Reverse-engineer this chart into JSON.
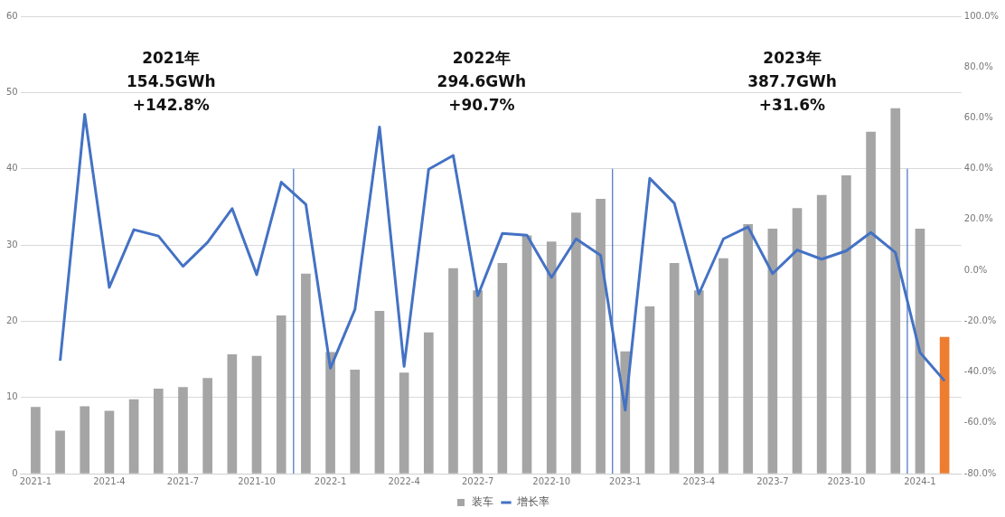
{
  "chart_data": {
    "type": "bar",
    "x": [
      "2021-01",
      "2021-02",
      "2021-03",
      "2021-04",
      "2021-05",
      "2021-06",
      "2021-07",
      "2021-08",
      "2021-09",
      "2021-10",
      "2021-11",
      "2021-12",
      "2022-01",
      "2022-02",
      "2022-03",
      "2022-04",
      "2022-05",
      "2022-06",
      "2022-07",
      "2022-08",
      "2022-09",
      "2022-10",
      "2022-11",
      "2022-12",
      "2023-01",
      "2023-02",
      "2023-03",
      "2023-04",
      "2023-05",
      "2023-06",
      "2023-07",
      "2023-08",
      "2023-09",
      "2023-10",
      "2023-11",
      "2023-12",
      "2024-01",
      "2024-02"
    ],
    "series": [
      {
        "name": "装车",
        "color": "#a5a5a5",
        "colors": [
          "#a5a5a5",
          "#a5a5a5",
          "#a5a5a5",
          "#a5a5a5",
          "#a5a5a5",
          "#a5a5a5",
          "#a5a5a5",
          "#a5a5a5",
          "#a5a5a5",
          "#a5a5a5",
          "#a5a5a5",
          "#a5a5a5",
          "#a5a5a5",
          "#a5a5a5",
          "#a5a5a5",
          "#a5a5a5",
          "#a5a5a5",
          "#a5a5a5",
          "#a5a5a5",
          "#a5a5a5",
          "#a5a5a5",
          "#a5a5a5",
          "#a5a5a5",
          "#a5a5a5",
          "#a5a5a5",
          "#a5a5a5",
          "#a5a5a5",
          "#a5a5a5",
          "#a5a5a5",
          "#a5a5a5",
          "#a5a5a5",
          "#a5a5a5",
          "#a5a5a5",
          "#a5a5a5",
          "#a5a5a5",
          "#a5a5a5",
          "#a5a5a5",
          "#ed7d31"
        ],
        "values": [
          8.7,
          5.6,
          8.8,
          8.2,
          9.7,
          11.1,
          11.3,
          12.5,
          15.6,
          15.4,
          20.7,
          26.2,
          15.9,
          13.6,
          21.3,
          13.2,
          18.5,
          26.9,
          24,
          27.6,
          31.2,
          30.4,
          34.2,
          36,
          16,
          21.9,
          27.6,
          24,
          28.2,
          32.7,
          32.1,
          34.8,
          36.5,
          39.1,
          44.8,
          47.9,
          32.1,
          17.9
        ]
      },
      {
        "type": "line",
        "name": "增长率",
        "color": "#4472c4",
        "axis": "y2",
        "values": [
          null,
          -35.6,
          61.4,
          -6.7,
          16,
          13.5,
          1.6,
          11,
          24.3,
          -1.7,
          34.7,
          26,
          -38.5,
          -15.4,
          56.4,
          -37.8,
          39.8,
          45.2,
          -10,
          14.5,
          13.8,
          -2.8,
          12.4,
          5.9,
          -55,
          36.2,
          26.4,
          -9.3,
          12.4,
          17.1,
          -1.3,
          8,
          4.4,
          7.7,
          14.9,
          7,
          -32.3,
          -43.5
        ]
      }
    ],
    "xlim": [
      "2020-12-13",
      "2024-02-21"
    ],
    "xticks": [
      {
        "value": "2021-01",
        "label": "2021-1"
      },
      {
        "value": "2021-04",
        "label": "2021-4"
      },
      {
        "value": "2021-07",
        "label": "2021-7"
      },
      {
        "value": "2021-10",
        "label": "2021-10"
      },
      {
        "value": "2022-01",
        "label": "2022-1"
      },
      {
        "value": "2022-04",
        "label": "2022-4"
      },
      {
        "value": "2022-07",
        "label": "2022-7"
      },
      {
        "value": "2022-10",
        "label": "2022-10"
      },
      {
        "value": "2023-01",
        "label": "2023-1"
      },
      {
        "value": "2023-04",
        "label": "2023-4"
      },
      {
        "value": "2023-07",
        "label": "2023-7"
      },
      {
        "value": "2023-10",
        "label": "2023-10"
      },
      {
        "value": "2024-01",
        "label": "2024-1"
      }
    ],
    "ylim": [
      0,
      60
    ],
    "yticks": [
      0,
      10,
      20,
      30,
      40,
      50,
      60
    ],
    "y2lim": [
      -80,
      100
    ],
    "y2ticks": [
      {
        "value": -80,
        "label": "-80.0%"
      },
      {
        "value": -60,
        "label": "-60.0%"
      },
      {
        "value": -40,
        "label": "-40.0%"
      },
      {
        "value": -20,
        "label": "-20.0%"
      },
      {
        "value": 0,
        "label": "0.0%"
      },
      {
        "value": 20,
        "label": "20.0%"
      },
      {
        "value": 40,
        "label": "40.0%"
      },
      {
        "value": 60,
        "label": "60.0%"
      },
      {
        "value": 80,
        "label": "80.0%"
      },
      {
        "value": 100,
        "label": "100.0%"
      }
    ],
    "ref_lines": [
      {
        "axis": "x",
        "value": "2021-11-16",
        "color": "#4472c4"
      },
      {
        "axis": "x",
        "value": "2022-12-16",
        "color": "#4472c4"
      },
      {
        "axis": "x",
        "value": "2023-12-16",
        "color": "#4472c4"
      }
    ],
    "annotations": [
      "2021年\n154.5GWh\n+142.8%",
      "2022年\n294.6GWh\n+90.7%",
      "2023年\n387.7GWh\n+31.6%"
    ],
    "grid": "y",
    "legend": "bottom",
    "marker": "none",
    "line_style": "solid"
  }
}
